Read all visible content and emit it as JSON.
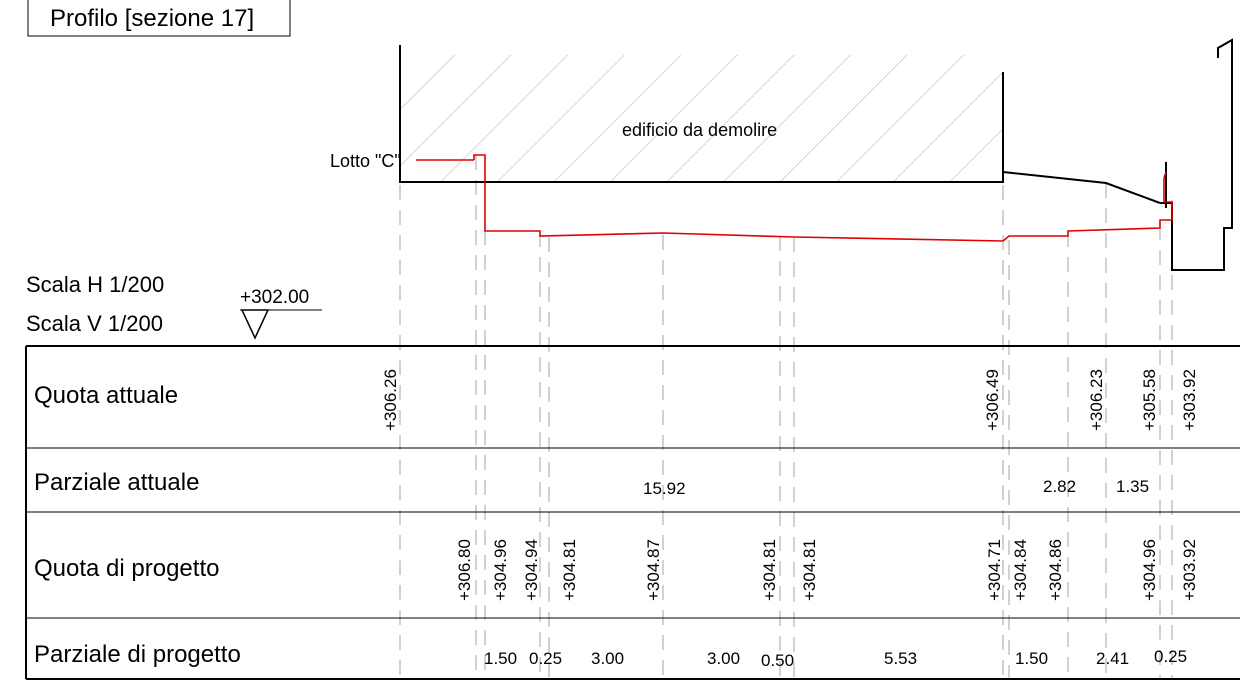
{
  "title": "Profilo [sezione 17]",
  "scale": {
    "h": "Scala H  1/200",
    "v": "Scala V  1/200"
  },
  "datum": "+302.00",
  "building_label": "edificio da demolire",
  "lot_label": "Lotto \"C\"",
  "rows": {
    "quota_attuale": "Quota attuale",
    "parziale_attuale": "Parziale attuale",
    "quota_progetto": "Quota di progetto",
    "parziale_progetto": "Parziale di progetto"
  },
  "quota_attuale_values": [
    "+306.26",
    "+306.49",
    "+306.23",
    "+305.58",
    "+303.92"
  ],
  "parziale_attuale_values": [
    "15.92",
    "2.82",
    "1.35"
  ],
  "quota_progetto_values": [
    "+306.80",
    "+304.96",
    "+304.94",
    "+304.81",
    "+304.87",
    "+304.81",
    "+304.81",
    "+304.71",
    "+304.84",
    "+304.86",
    "+304.96",
    "+303.92"
  ],
  "parziale_progetto_values": [
    "1.50",
    "0.25",
    "3.00",
    "3.00",
    "0.50",
    "5.53",
    "1.50",
    "2.41",
    "0.25"
  ],
  "colors": {
    "existing_profile": "#000000",
    "project_profile": "#e00000",
    "guides": "#999999"
  }
}
